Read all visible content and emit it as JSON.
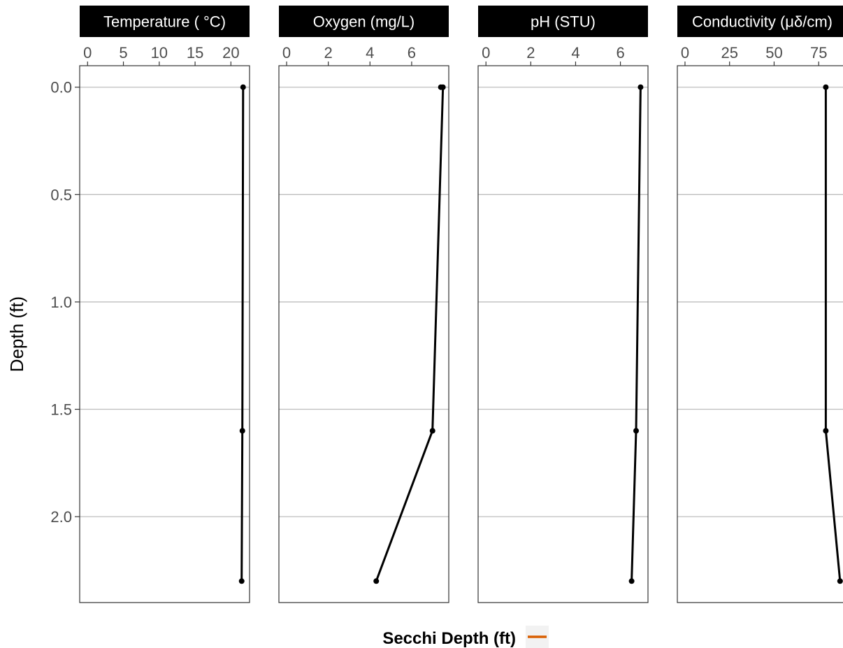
{
  "chart_data": {
    "type": "line",
    "y_axis": {
      "label": "Depth (ft)",
      "reversed": true,
      "range": [
        -0.1,
        2.4
      ],
      "ticks": [
        0.0,
        0.5,
        1.0,
        1.5,
        2.0
      ],
      "tick_labels": [
        "0.0",
        "0.5",
        "1.0",
        "1.5",
        "2.0"
      ]
    },
    "facets": [
      {
        "name": "temperature",
        "strip_label": "Temperature ( °C)",
        "x_range": [
          -1.1,
          22.6
        ],
        "x_ticks": [
          0,
          5,
          10,
          15,
          20
        ],
        "x_tick_labels": [
          "0",
          "5",
          "10",
          "15",
          "20"
        ],
        "points": [
          {
            "x": 21.7,
            "depth": 0.0
          },
          {
            "x": 21.6,
            "depth": 1.6
          },
          {
            "x": 21.5,
            "depth": 2.3
          }
        ]
      },
      {
        "name": "oxygen",
        "strip_label": "Oxygen (mg/L)",
        "x_range": [
          -0.37,
          7.78
        ],
        "x_ticks": [
          0,
          2,
          4,
          6
        ],
        "x_tick_labels": [
          "0",
          "2",
          "4",
          "6"
        ],
        "points": [
          {
            "x": 7.4,
            "depth": 0.0
          },
          {
            "x": 7.5,
            "depth": 0.0
          },
          {
            "x": 7.0,
            "depth": 1.6
          },
          {
            "x": 4.3,
            "depth": 2.3
          }
        ]
      },
      {
        "name": "ph",
        "strip_label": "pH (STU)",
        "x_range": [
          -0.35,
          7.23
        ],
        "x_ticks": [
          0,
          2,
          4,
          6
        ],
        "x_tick_labels": [
          "0",
          "2",
          "4",
          "6"
        ],
        "points": [
          {
            "x": 6.9,
            "depth": 0.0
          },
          {
            "x": 6.7,
            "depth": 1.6
          },
          {
            "x": 6.5,
            "depth": 2.3
          }
        ]
      },
      {
        "name": "conductivity",
        "strip_label": "Conductivity (μδ/cm)",
        "x_range": [
          -4.3,
          91.0
        ],
        "x_ticks": [
          0,
          25,
          50,
          75
        ],
        "x_tick_labels": [
          "0",
          "25",
          "50",
          "75"
        ],
        "points": [
          {
            "x": 79,
            "depth": 0.0
          },
          {
            "x": 79,
            "depth": 1.6
          },
          {
            "x": 87,
            "depth": 2.3
          }
        ]
      }
    ],
    "legend": {
      "title": "Secchi Depth (ft)",
      "position": "bottom",
      "key_color": "#d95f02"
    },
    "grid": {
      "major_y": true,
      "major_x": false
    },
    "colors": {
      "series": "#000000",
      "strip_background": "#000000",
      "strip_text": "#ffffff",
      "grid": "#bdbdbd",
      "legend_key": "#d95f02",
      "legend_key_background": "#f2f2f2"
    }
  }
}
